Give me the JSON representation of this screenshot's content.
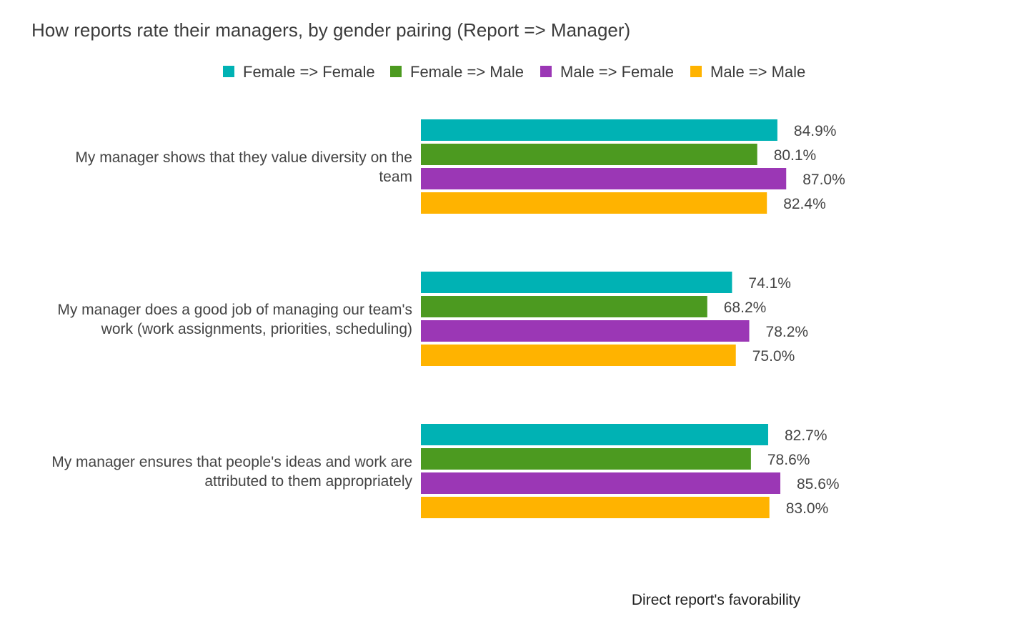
{
  "chart_data": {
    "type": "bar",
    "orientation": "horizontal",
    "title": "How reports rate their managers, by gender pairing (Report => Manager)",
    "xlabel": "Direct report's favorability",
    "ylabel": "",
    "xlim": [
      0,
      100
    ],
    "grid": false,
    "legend": "top",
    "categories": [
      "My manager shows that they value diversity on the team",
      "My manager does a good job of managing our team's work (work assignments, priorities, scheduling)",
      "My manager ensures that people's ideas and work are attributed to them appropriately"
    ],
    "category_lines": [
      [
        "My manager shows that they value diversity on the",
        "team"
      ],
      [
        "My manager does a good job of managing our team's",
        "work (work assignments, priorities, scheduling)"
      ],
      [
        "My manager ensures that people's ideas and work are",
        "attributed to them appropriately"
      ]
    ],
    "series": [
      {
        "name": "Female => Female",
        "color": "#00b2b4",
        "values": [
          84.9,
          74.1,
          82.7
        ],
        "labels": [
          "84.9%",
          "74.1%",
          "82.7%"
        ]
      },
      {
        "name": "Female => Male",
        "color": "#4c9a20",
        "values": [
          80.1,
          68.2,
          78.6
        ],
        "labels": [
          "80.1%",
          "68.2%",
          "78.6%"
        ]
      },
      {
        "name": "Male => Female",
        "color": "#9b37b5",
        "values": [
          87.0,
          78.2,
          85.6
        ],
        "labels": [
          "87.0%",
          "78.2%",
          "85.6%"
        ]
      },
      {
        "name": "Male => Male",
        "color": "#ffb300",
        "values": [
          82.4,
          75.0,
          83.0
        ],
        "labels": [
          "82.4%",
          "75.0%",
          "83.0%"
        ]
      }
    ]
  }
}
